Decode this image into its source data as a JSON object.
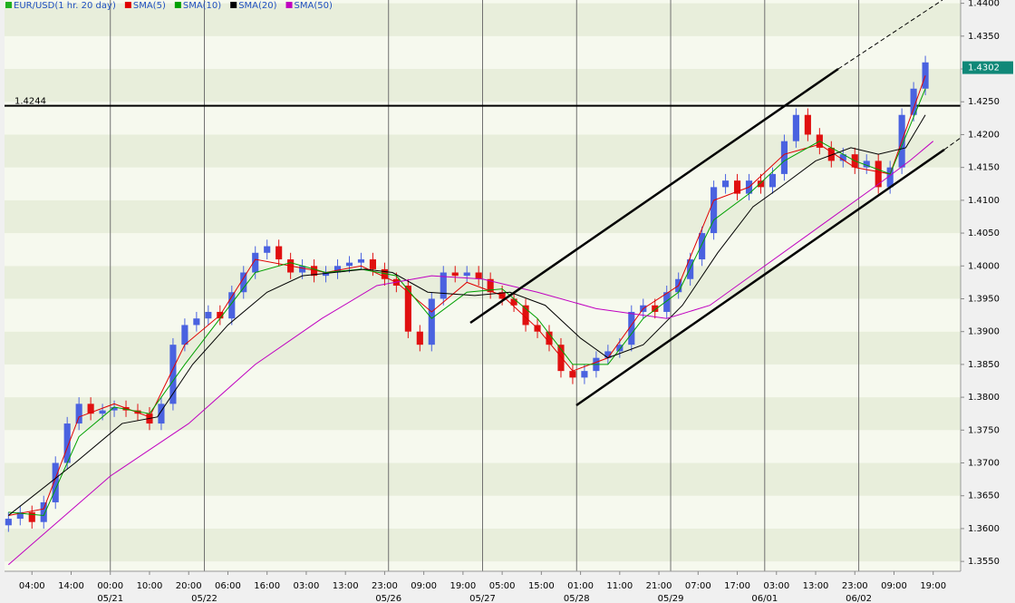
{
  "chart_data": {
    "type": "candlestick",
    "name": "EUR/USD(1 hr. 20 day)",
    "color_up": "#4a62e0",
    "color_down": "#e01010",
    "legend_color": "#20b020",
    "x": [
      0,
      3,
      6,
      9,
      12,
      15,
      18,
      21,
      24,
      27,
      30,
      33,
      36,
      39,
      42,
      45,
      48,
      51,
      54,
      57,
      60,
      63,
      66,
      69,
      72,
      75,
      78,
      81,
      84,
      87,
      90,
      93,
      96,
      99,
      102,
      105,
      108,
      111,
      114,
      117,
      120,
      123,
      126,
      129,
      132,
      135,
      138,
      141,
      144,
      147,
      150,
      153,
      156,
      159,
      162,
      165,
      168,
      171,
      174,
      177,
      180,
      183,
      186,
      189,
      192,
      195,
      198,
      201,
      204,
      207,
      210,
      213,
      216,
      219,
      222,
      225,
      228,
      231,
      234
    ],
    "open": [
      1.3605,
      1.3615,
      1.3625,
      1.361,
      1.364,
      1.37,
      1.376,
      1.379,
      1.3775,
      1.378,
      1.3785,
      1.378,
      1.3775,
      1.376,
      1.379,
      1.388,
      1.391,
      1.392,
      1.393,
      1.392,
      1.396,
      1.399,
      1.402,
      1.403,
      1.401,
      1.399,
      1.4,
      1.3985,
      1.399,
      1.4,
      1.4005,
      1.401,
      1.3995,
      1.398,
      1.397,
      1.39,
      1.388,
      1.395,
      1.399,
      1.3985,
      1.399,
      1.398,
      1.396,
      1.395,
      1.394,
      1.391,
      1.39,
      1.388,
      1.384,
      1.383,
      1.384,
      1.386,
      1.387,
      1.388,
      1.393,
      1.394,
      1.393,
      1.396,
      1.398,
      1.401,
      1.405,
      1.412,
      1.413,
      1.411,
      1.413,
      1.412,
      1.414,
      1.419,
      1.423,
      1.42,
      1.418,
      1.416,
      1.417,
      1.415,
      1.416,
      1.412,
      1.415,
      1.423,
      1.427
    ],
    "high": [
      1.3625,
      1.3635,
      1.3635,
      1.365,
      1.371,
      1.377,
      1.38,
      1.38,
      1.379,
      1.3795,
      1.3795,
      1.379,
      1.3785,
      1.38,
      1.389,
      1.392,
      1.393,
      1.394,
      1.394,
      1.397,
      1.4,
      1.403,
      1.404,
      1.404,
      1.402,
      1.401,
      1.401,
      1.4,
      1.401,
      1.4015,
      1.402,
      1.402,
      1.4005,
      1.399,
      1.398,
      1.391,
      1.396,
      1.4,
      1.4,
      1.4,
      1.4,
      1.399,
      1.397,
      1.396,
      1.395,
      1.392,
      1.391,
      1.389,
      1.385,
      1.385,
      1.387,
      1.388,
      1.389,
      1.394,
      1.395,
      1.395,
      1.397,
      1.399,
      1.402,
      1.406,
      1.413,
      1.414,
      1.414,
      1.414,
      1.414,
      1.415,
      1.42,
      1.424,
      1.424,
      1.421,
      1.419,
      1.418,
      1.418,
      1.417,
      1.417,
      1.416,
      1.424,
      1.428,
      1.432
    ],
    "low": [
      1.3595,
      1.3605,
      1.36,
      1.36,
      1.363,
      1.369,
      1.375,
      1.3765,
      1.3765,
      1.377,
      1.377,
      1.3765,
      1.375,
      1.375,
      1.378,
      1.387,
      1.39,
      1.391,
      1.391,
      1.391,
      1.395,
      1.398,
      1.401,
      1.4,
      1.398,
      1.398,
      1.3975,
      1.3975,
      1.398,
      1.399,
      1.3995,
      1.3985,
      1.397,
      1.396,
      1.389,
      1.387,
      1.387,
      1.394,
      1.3975,
      1.3975,
      1.397,
      1.395,
      1.394,
      1.393,
      1.39,
      1.389,
      1.387,
      1.383,
      1.382,
      1.382,
      1.383,
      1.385,
      1.386,
      1.387,
      1.392,
      1.392,
      1.392,
      1.395,
      1.397,
      1.4,
      1.404,
      1.411,
      1.41,
      1.41,
      1.411,
      1.411,
      1.413,
      1.418,
      1.419,
      1.417,
      1.415,
      1.415,
      1.414,
      1.414,
      1.411,
      1.411,
      1.414,
      1.422,
      1.426
    ],
    "close": [
      1.3615,
      1.3625,
      1.361,
      1.364,
      1.37,
      1.376,
      1.379,
      1.3775,
      1.378,
      1.3785,
      1.378,
      1.3775,
      1.376,
      1.379,
      1.388,
      1.391,
      1.392,
      1.393,
      1.392,
      1.396,
      1.399,
      1.402,
      1.403,
      1.401,
      1.399,
      1.4,
      1.3985,
      1.399,
      1.4,
      1.4005,
      1.401,
      1.3995,
      1.398,
      1.397,
      1.39,
      1.388,
      1.395,
      1.399,
      1.3985,
      1.399,
      1.398,
      1.396,
      1.395,
      1.394,
      1.391,
      1.39,
      1.388,
      1.384,
      1.383,
      1.384,
      1.386,
      1.387,
      1.388,
      1.393,
      1.394,
      1.393,
      1.396,
      1.398,
      1.401,
      1.405,
      1.412,
      1.413,
      1.411,
      1.413,
      1.412,
      1.414,
      1.419,
      1.423,
      1.42,
      1.418,
      1.416,
      1.417,
      1.415,
      1.416,
      1.412,
      1.415,
      1.423,
      1.427,
      1.431
    ],
    "series": [
      {
        "name": "SMA(5)",
        "color": "#e00000",
        "x": [
          0,
          9,
          18,
          27,
          36,
          45,
          54,
          63,
          72,
          81,
          90,
          99,
          108,
          117,
          126,
          135,
          144,
          153,
          162,
          171,
          180,
          189,
          198,
          207,
          216,
          225,
          234
        ],
        "values": [
          1.362,
          1.363,
          1.377,
          1.379,
          1.377,
          1.388,
          1.3925,
          1.401,
          1.4,
          1.399,
          1.4,
          1.3975,
          1.393,
          1.3975,
          1.3955,
          1.3905,
          1.384,
          1.386,
          1.3935,
          1.397,
          1.41,
          1.412,
          1.417,
          1.4185,
          1.415,
          1.414,
          1.429
        ]
      },
      {
        "name": "SMA(10)",
        "color": "#00a000",
        "x": [
          0,
          9,
          18,
          27,
          36,
          45,
          54,
          63,
          72,
          81,
          90,
          99,
          108,
          117,
          126,
          135,
          144,
          153,
          162,
          171,
          180,
          189,
          198,
          207,
          216,
          225,
          234
        ],
        "values": [
          1.3625,
          1.362,
          1.374,
          1.3785,
          1.3775,
          1.385,
          1.392,
          1.399,
          1.4005,
          1.399,
          1.3995,
          1.3985,
          1.392,
          1.396,
          1.3965,
          1.392,
          1.385,
          1.385,
          1.392,
          1.396,
          1.407,
          1.411,
          1.416,
          1.419,
          1.416,
          1.414,
          1.427
        ]
      },
      {
        "name": "SMA(20)",
        "color": "#000000",
        "x": [
          0,
          17,
          29,
          38,
          47,
          56,
          66,
          75,
          91,
          98,
          107,
          119,
          128,
          137,
          146,
          153,
          162,
          172,
          181,
          190,
          197,
          206,
          215,
          222,
          229,
          234
        ],
        "values": [
          1.362,
          1.37,
          1.376,
          1.377,
          1.385,
          1.391,
          1.396,
          1.3985,
          1.3995,
          1.399,
          1.396,
          1.3955,
          1.396,
          1.394,
          1.389,
          1.386,
          1.388,
          1.394,
          1.402,
          1.409,
          1.412,
          1.416,
          1.418,
          1.417,
          1.418,
          1.423
        ]
      },
      {
        "name": "SMA(50)",
        "color": "#c000c0",
        "x": [
          0,
          26,
          46,
          63,
          80,
          94,
          108,
          121,
          135,
          150,
          168,
          179,
          193,
          207,
          221,
          230,
          236
        ],
        "values": [
          1.3545,
          1.368,
          1.376,
          1.385,
          1.392,
          1.397,
          1.3985,
          1.398,
          1.396,
          1.3935,
          1.392,
          1.394,
          1.4,
          1.406,
          1.412,
          1.416,
          1.419
        ]
      }
    ],
    "xlim": [
      -1,
      243
    ],
    "ylim": [
      1.3535,
      1.4405
    ],
    "xticks": [
      {
        "value": 6,
        "label": "04:00"
      },
      {
        "value": 16,
        "label": "14:00"
      },
      {
        "value": 26,
        "label": "00:00"
      },
      {
        "value": 36,
        "label": "10:00"
      },
      {
        "value": 46,
        "label": "20:00"
      },
      {
        "value": 56,
        "label": "06:00"
      },
      {
        "value": 66,
        "label": "16:00"
      },
      {
        "value": 76,
        "label": "03:00"
      },
      {
        "value": 86,
        "label": "13:00"
      },
      {
        "value": 96,
        "label": "23:00"
      },
      {
        "value": 106,
        "label": "09:00"
      },
      {
        "value": 116,
        "label": "19:00"
      },
      {
        "value": 126,
        "label": "05:00"
      },
      {
        "value": 136,
        "label": "15:00"
      },
      {
        "value": 146,
        "label": "01:00"
      },
      {
        "value": 156,
        "label": "11:00"
      },
      {
        "value": 166,
        "label": "21:00"
      },
      {
        "value": 176,
        "label": "07:00"
      },
      {
        "value": 186,
        "label": "17:00"
      },
      {
        "value": 196,
        "label": "03:00"
      },
      {
        "value": 206,
        "label": "13:00"
      },
      {
        "value": 216,
        "label": "23:00"
      },
      {
        "value": 226,
        "label": "09:00"
      },
      {
        "value": 236,
        "label": "19:00"
      }
    ],
    "date_markers": [
      {
        "value": 26,
        "label": "05/21"
      },
      {
        "value": 50,
        "label": "05/22"
      },
      {
        "value": 97,
        "label": "05/26"
      },
      {
        "value": 121,
        "label": "05/27"
      },
      {
        "value": 145,
        "label": "05/28"
      },
      {
        "value": 169,
        "label": "05/29"
      },
      {
        "value": 193,
        "label": "06/01"
      },
      {
        "value": 217,
        "label": "06/02"
      }
    ],
    "yticks": [
      {
        "value": 1.355,
        "label": "1.3550"
      },
      {
        "value": 1.36,
        "label": "1.3600"
      },
      {
        "value": 1.365,
        "label": "1.3650"
      },
      {
        "value": 1.37,
        "label": "1.3700"
      },
      {
        "value": 1.375,
        "label": "1.3750"
      },
      {
        "value": 1.38,
        "label": "1.3800"
      },
      {
        "value": 1.385,
        "label": "1.3850"
      },
      {
        "value": 1.39,
        "label": "1.3900"
      },
      {
        "value": 1.395,
        "label": "1.3950"
      },
      {
        "value": 1.4,
        "label": "1.4000"
      },
      {
        "value": 1.405,
        "label": "1.4050"
      },
      {
        "value": 1.41,
        "label": "1.4100"
      },
      {
        "value": 1.415,
        "label": "1.4150"
      },
      {
        "value": 1.42,
        "label": "1.4200"
      },
      {
        "value": 1.425,
        "label": "1.4250"
      },
      {
        "value": 1.43,
        "label": "1.4300"
      },
      {
        "value": 1.435,
        "label": "1.4350"
      },
      {
        "value": 1.44,
        "label": "1.4400"
      }
    ],
    "hline": {
      "value": 1.4244,
      "label": "1.4244"
    },
    "last_price": {
      "value": 1.4302,
      "label": "1.4302",
      "color": "#108878"
    }
  }
}
